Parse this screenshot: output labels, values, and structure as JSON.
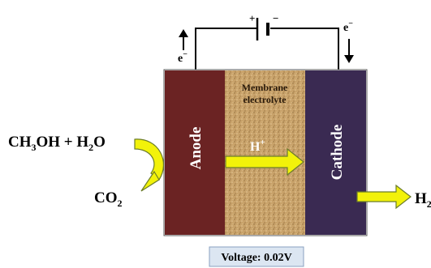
{
  "circuit": {
    "battery_plus": "+",
    "battery_minus": "−",
    "left_electron_label": "e",
    "right_electron_label": "e",
    "electron_charge": "−"
  },
  "cell": {
    "anode_label": "Anode",
    "membrane_label_line1": "Membrane",
    "membrane_label_line2": "electrolyte",
    "proton_label": "H",
    "proton_charge": "+",
    "cathode_label": "Cathode"
  },
  "reactants": {
    "ch3oh_prefix": "CH",
    "ch3oh_sub": "3",
    "ch3oh_rest": "OH + H",
    "water_sub": "2",
    "water_rest": "O"
  },
  "products": {
    "co2_prefix": "CO",
    "co2_sub": "2",
    "h2_prefix": "H",
    "h2_sub": "2"
  },
  "status": {
    "voltage_text": "Voltage: 0.02V"
  },
  "colors": {
    "anode": "#6b2323",
    "cathode": "#3a2a52",
    "membrane": "#c9a36b",
    "arrow_fill": "#f2f20a",
    "arrow_stroke": "#6b7c2a",
    "voltage_box_bg": "#dce6f2",
    "voltage_box_border": "#8aa0c0"
  }
}
